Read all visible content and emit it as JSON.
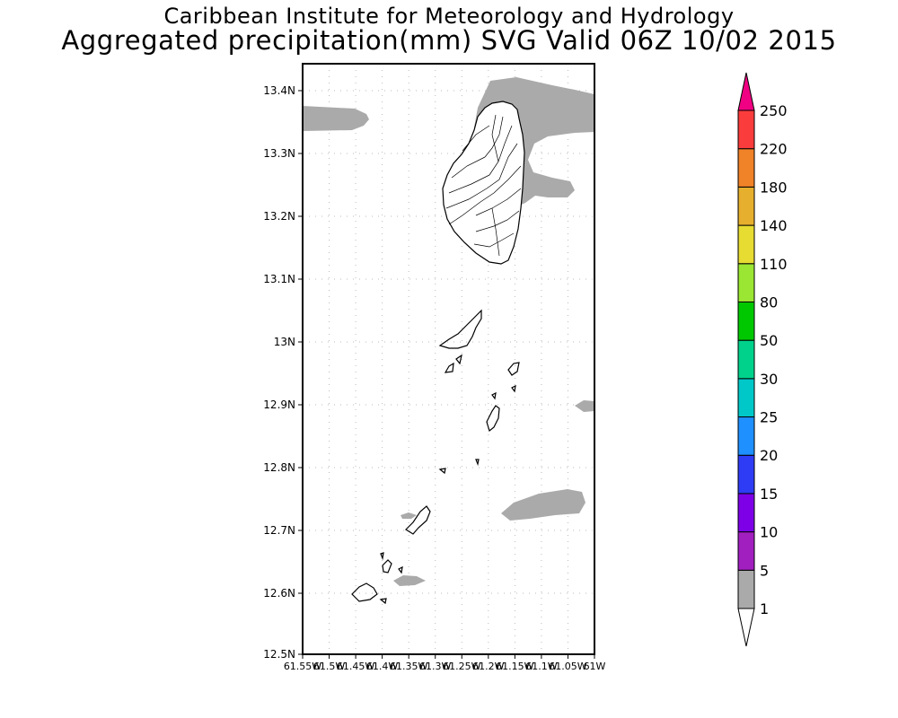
{
  "header": {
    "title": "Caribbean Institute for Meteorology and Hydrology",
    "subtitle": "Aggregated precipitation(mm) SVG Valid 06Z 10/02 2015"
  },
  "map": {
    "lat_ticks": [
      "13.4N",
      "13.3N",
      "13.2N",
      "13.1N",
      "13N",
      "12.9N",
      "12.8N",
      "12.7N",
      "12.6N",
      "12.5N"
    ],
    "lon_ticks": [
      "61.55W",
      "61.5W",
      "61.45W",
      "61.4W",
      "61.35W",
      "61.3W",
      "61.25W",
      "61.2W",
      "61.15W",
      "61.1W",
      "61.05W",
      "61W"
    ],
    "precip_fill_color": "#aaaaaa",
    "coastline_color": "#000000"
  },
  "colorbar": {
    "labels": [
      "1",
      "5",
      "10",
      "15",
      "20",
      "25",
      "30",
      "50",
      "80",
      "110",
      "140",
      "180",
      "220",
      "250"
    ],
    "colors": [
      "#aaaaaa",
      "#a21fbf",
      "#7d00e6",
      "#2e3cf5",
      "#1e90ff",
      "#00c8c8",
      "#00d28c",
      "#00c800",
      "#9be632",
      "#e6dc32",
      "#e6af2d",
      "#f08228",
      "#fa3c3c",
      "#f00082"
    ]
  }
}
